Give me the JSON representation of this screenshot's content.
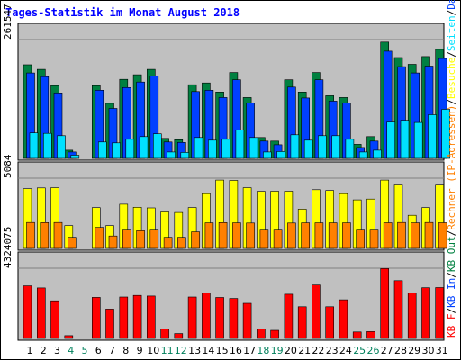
{
  "title": "Tages-Statistik im Monat August 2018",
  "colors": {
    "frame": "#000000",
    "plot_bg": "#c0c0c0",
    "grid": "#808080",
    "title": "#0000ff",
    "hits": "#008040",
    "files": "#0040ff",
    "pages": "#00e0ff",
    "visits": "#ffff00",
    "sites": "#ff8000",
    "kbytes": "#ff0000",
    "weekday_label": "#000000",
    "weekend_label": "#00805c"
  },
  "chart_data": [
    {
      "type": "bar",
      "panel": "top",
      "ymax_label": "261547",
      "ymax": 261547,
      "series_order": [
        "hits",
        "files",
        "pages"
      ],
      "series": [
        {
          "key": "hits",
          "values": [
            206000,
            196000,
            160000,
            18000,
            0,
            160000,
            121000,
            174000,
            184000,
            196000,
            44000,
            41000,
            162000,
            166000,
            146000,
            189000,
            134000,
            46000,
            38000,
            173000,
            146000,
            189000,
            138000,
            134000,
            31000,
            48000,
            256000,
            222000,
            207000,
            224000,
            240000
          ]
        },
        {
          "key": "files",
          "values": [
            188000,
            180000,
            144000,
            14000,
            0,
            150000,
            110000,
            156000,
            168000,
            181000,
            36000,
            35000,
            147000,
            150000,
            134000,
            173000,
            122000,
            38000,
            30000,
            157000,
            133000,
            173000,
            126000,
            122000,
            24000,
            38000,
            236000,
            202000,
            188000,
            203000,
            220000
          ]
        },
        {
          "key": "pages",
          "values": [
            56000,
            55000,
            50000,
            7000,
            0,
            36000,
            34000,
            42000,
            48000,
            54000,
            14000,
            13000,
            46000,
            40000,
            42000,
            62000,
            46000,
            14000,
            15000,
            52000,
            40000,
            50000,
            50000,
            42000,
            14000,
            18000,
            80000,
            84000,
            79000,
            96000,
            108000
          ]
        }
      ]
    },
    {
      "type": "bar",
      "panel": "middle",
      "ymax_label": "5084",
      "ymax": 5084,
      "series_order": [
        "visits",
        "sites"
      ],
      "series": [
        {
          "key": "visits",
          "values": [
            4320,
            4380,
            4390,
            1650,
            0,
            2950,
            1650,
            3200,
            2980,
            2930,
            2640,
            2600,
            2960,
            3960,
            4950,
            4920,
            4390,
            4130,
            4140,
            4140,
            2840,
            4250,
            4190,
            3960,
            3510,
            3570,
            4950,
            4590,
            2400,
            2950,
            4580
          ]
        },
        {
          "key": "sites",
          "values": [
            1880,
            1870,
            1880,
            800,
            0,
            1520,
            900,
            1320,
            1280,
            1320,
            800,
            800,
            1200,
            1850,
            1870,
            1850,
            1840,
            1320,
            1320,
            1840,
            1850,
            1850,
            1850,
            1850,
            1320,
            1320,
            1860,
            1880,
            1850,
            1880,
            1860
          ]
        }
      ]
    },
    {
      "type": "bar",
      "panel": "bottom",
      "ymax_label": "4324075",
      "ymax": 4324075,
      "series_order": [
        "kbytes"
      ],
      "series": [
        {
          "key": "kbytes",
          "values": [
            3240000,
            3110000,
            2320000,
            170000,
            0,
            2530000,
            1810000,
            2550000,
            2650000,
            2610000,
            570000,
            300000,
            2550000,
            2800000,
            2520000,
            2460000,
            2160000,
            570000,
            500000,
            2720000,
            1950000,
            3290000,
            1950000,
            2380000,
            400000,
            420000,
            4300000,
            3560000,
            2790000,
            3120000,
            3130000
          ]
        }
      ]
    }
  ],
  "days": [
    "1",
    "2",
    "3",
    "4",
    "5",
    "6",
    "7",
    "8",
    "9",
    "10",
    "11",
    "12",
    "13",
    "14",
    "15",
    "16",
    "17",
    "18",
    "19",
    "20",
    "21",
    "22",
    "23",
    "24",
    "25",
    "26",
    "27",
    "28",
    "29",
    "30",
    "31"
  ],
  "weekend_days": [
    4,
    5,
    11,
    12,
    18,
    19,
    25,
    26
  ],
  "legend_segments": [
    {
      "text": "KB F",
      "color_key": "kbytes"
    },
    {
      "text": "/",
      "color_key": "weekday_label"
    },
    {
      "text": "KB In",
      "color_key": "files"
    },
    {
      "text": "/",
      "color_key": "weekday_label"
    },
    {
      "text": "KB Out",
      "color_key": "hits"
    },
    {
      "text": "/",
      "color_key": "weekday_label"
    },
    {
      "text": "Rechner (IP-Adressen)",
      "color_key": "sites"
    },
    {
      "text": "/",
      "color_key": "weekday_label"
    },
    {
      "text": "Besuche",
      "color_key": "visits"
    },
    {
      "text": "/",
      "color_key": "weekday_label"
    },
    {
      "text": "Seiten",
      "color_key": "pages"
    },
    {
      "text": "/",
      "color_key": "weekday_label"
    },
    {
      "text": "Dateien",
      "color_key": "files"
    },
    {
      "text": "/",
      "color_key": "weekday_label"
    },
    {
      "text": "Anfragen",
      "color_key": "hits"
    }
  ]
}
